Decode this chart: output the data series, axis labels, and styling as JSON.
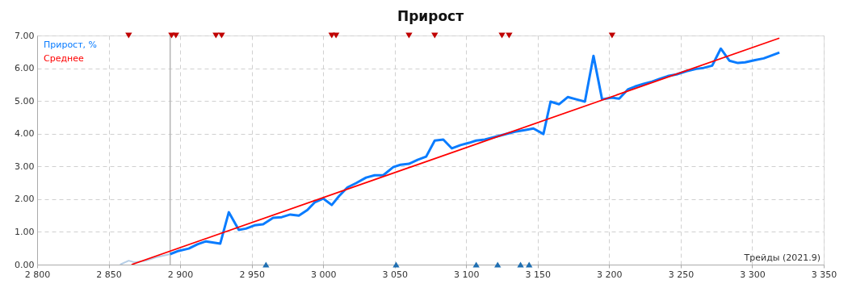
{
  "chart_data": {
    "type": "line",
    "title": "Прирост",
    "xlabel": "Трейды (2021.9)",
    "xlim": [
      2800,
      3350
    ],
    "xticks": [
      {
        "value": 2800,
        "label": "2 800"
      },
      {
        "value": 2850,
        "label": "2 850"
      },
      {
        "value": 2900,
        "label": "2 900"
      },
      {
        "value": 2950,
        "label": "2 950"
      },
      {
        "value": 3000,
        "label": "3 000"
      },
      {
        "value": 3050,
        "label": "3 050"
      },
      {
        "value": 3100,
        "label": "3 100"
      },
      {
        "value": 3150,
        "label": "3 150"
      },
      {
        "value": 3200,
        "label": "3 200"
      },
      {
        "value": 3250,
        "label": "3 250"
      },
      {
        "value": 3300,
        "label": "3 300"
      },
      {
        "value": 3350,
        "label": "3 350"
      }
    ],
    "ylim": [
      0,
      7
    ],
    "yticks": [
      {
        "value": 0,
        "label": "0.00"
      },
      {
        "value": 1,
        "label": "1.00"
      },
      {
        "value": 2,
        "label": "2.00"
      },
      {
        "value": 3,
        "label": "3.00"
      },
      {
        "value": 4,
        "label": "4.00"
      },
      {
        "value": 5,
        "label": "5.00"
      },
      {
        "value": 6,
        "label": "6.00"
      },
      {
        "value": 7,
        "label": "7.00"
      }
    ],
    "grid": true,
    "legend": "top left",
    "line_style": "solid",
    "ref_lines": [
      {
        "axis": "x",
        "value": 2893,
        "color": "#b4b4b4"
      }
    ],
    "series": [
      {
        "color": "#b4cde6",
        "x": [
          2858,
          2864,
          2868,
          2876,
          2883,
          2893
        ],
        "values": [
          0,
          0.12,
          0.07,
          0.12,
          0.22,
          0.32
        ]
      },
      {
        "name": "Прирост, %",
        "color": "#0a7cff",
        "x": [
          2893,
          2899,
          2906,
          2912,
          2918,
          2928,
          2934,
          2941,
          2946,
          2952,
          2958,
          2965,
          2971,
          2977,
          2983,
          2989,
          2994,
          3000,
          3006,
          3011,
          3017,
          3023,
          3030,
          3036,
          3042,
          3049,
          3054,
          3060,
          3066,
          3072,
          3078,
          3084,
          3090,
          3096,
          3102,
          3107,
          3113,
          3119,
          3126,
          3134,
          3141,
          3147,
          3154,
          3159,
          3165,
          3171,
          3177,
          3183,
          3189,
          3195,
          3202,
          3207,
          3213,
          3218,
          3224,
          3230,
          3235,
          3241,
          3247,
          3254,
          3261,
          3266,
          3272,
          3278,
          3284,
          3290,
          3295,
          3302,
          3308,
          3313,
          3319
        ],
        "values": [
          0.32,
          0.42,
          0.49,
          0.62,
          0.71,
          0.64,
          1.6,
          1.06,
          1.1,
          1.2,
          1.23,
          1.43,
          1.45,
          1.53,
          1.5,
          1.67,
          1.9,
          2.02,
          1.82,
          2.09,
          2.36,
          2.49,
          2.66,
          2.73,
          2.73,
          2.98,
          3.05,
          3.08,
          3.2,
          3.3,
          3.79,
          3.82,
          3.55,
          3.65,
          3.72,
          3.79,
          3.82,
          3.89,
          3.97,
          4.06,
          4.11,
          4.16,
          3.99,
          4.98,
          4.9,
          5.12,
          5.05,
          4.98,
          6.38,
          5.05,
          5.1,
          5.07,
          5.35,
          5.44,
          5.52,
          5.59,
          5.67,
          5.76,
          5.81,
          5.91,
          5.98,
          6.01,
          6.08,
          6.6,
          6.23,
          6.16,
          6.18,
          6.25,
          6.3,
          6.38,
          6.48
        ]
      },
      {
        "name": "Среднее",
        "color": "#ff0000",
        "x": [
          2866,
          3319
        ],
        "values": [
          0,
          6.92
        ]
      },
      {
        "type": "scatter",
        "marker": "triangle_down",
        "color": "#c00000",
        "x": [
          2864,
          2894,
          2897,
          2925,
          2929,
          3006,
          3009,
          3060,
          3078,
          3125,
          3130,
          3202
        ],
        "values": [
          7,
          7,
          7,
          7,
          7,
          7,
          7,
          7,
          7,
          7,
          7,
          7
        ]
      },
      {
        "type": "scatter",
        "marker": "triangle",
        "color": "#1f6fb2",
        "x": [
          2960,
          3051,
          3107,
          3122,
          3138,
          3144
        ],
        "values": [
          0,
          0,
          0,
          0,
          0,
          0
        ]
      }
    ]
  }
}
